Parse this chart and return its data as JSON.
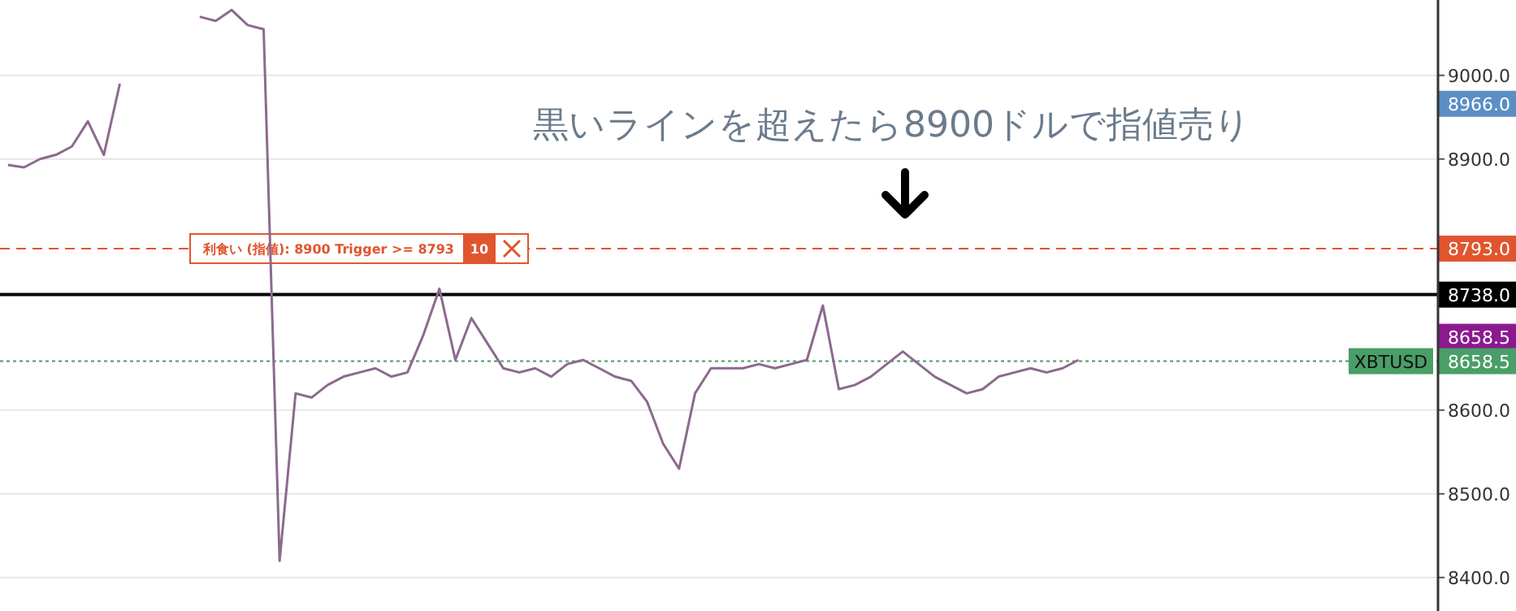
{
  "chart_data": {
    "type": "line",
    "categories": [
      null,
      null,
      null,
      null,
      null,
      null,
      null,
      null,
      null,
      null,
      null,
      null,
      null,
      null,
      null,
      null,
      null,
      null,
      null,
      null,
      null,
      null,
      null,
      null,
      null,
      null,
      null,
      null,
      null,
      null,
      null,
      null,
      null,
      null,
      null,
      null,
      null,
      null,
      null,
      null,
      null,
      null,
      null,
      null,
      null,
      null,
      null,
      null,
      null,
      null,
      null,
      null,
      null,
      null,
      null,
      null,
      null,
      null,
      null,
      null,
      null,
      null,
      null,
      null,
      null,
      null,
      null,
      null,
      null,
      null,
      null,
      null,
      null,
      null,
      null,
      null,
      null,
      null,
      null,
      null,
      null,
      null,
      null,
      null,
      null,
      null,
      null,
      null,
      null,
      null
    ],
    "series": [
      {
        "color": "#8c6a8e",
        "values": [
          8893,
          8890,
          8900,
          8905,
          8915,
          8945,
          8905,
          8990,
          null,
          null,
          null,
          null,
          null,
          null,
          null,
          null,
          null,
          null,
          null,
          null,
          null,
          null,
          null,
          null,
          null,
          null,
          null,
          null,
          null,
          null,
          null,
          null,
          null,
          null,
          null,
          null,
          null,
          null,
          null,
          null,
          null,
          null,
          null,
          null,
          null,
          null,
          null,
          null,
          null,
          null,
          null,
          null,
          null,
          null,
          null,
          null,
          null,
          null,
          null,
          null,
          null,
          null,
          null,
          null,
          null,
          null,
          null,
          null,
          null,
          null,
          null,
          null,
          null,
          null,
          null,
          null,
          null,
          null,
          null,
          null,
          null,
          null,
          null,
          null,
          null,
          null,
          null,
          null,
          null,
          null
        ]
      },
      {
        "color": "#8c6a8e",
        "values": [
          null,
          null,
          null,
          null,
          null,
          null,
          null,
          null,
          null,
          null,
          null,
          null,
          9070,
          9065,
          9078,
          9060,
          9055,
          8420,
          8620,
          8615,
          8630,
          8640,
          8645,
          8650,
          8640,
          8645,
          8690,
          8745,
          8660,
          8710,
          8680,
          8650,
          8645,
          8650,
          8640,
          8655,
          8660,
          8650,
          8640,
          8635,
          8610,
          8560,
          8530,
          8620,
          8650,
          8650,
          8650,
          8655,
          8650,
          8655,
          8660,
          8725,
          8625,
          8630,
          8640,
          8655,
          8670,
          8655,
          8640,
          8630,
          8620,
          8625,
          8640,
          8645,
          8650,
          8645,
          8650,
          8660,
          null,
          null,
          null,
          null,
          null,
          null,
          null,
          null,
          null,
          null,
          null,
          null,
          null,
          null,
          null,
          null,
          null,
          null,
          null,
          null,
          null,
          null
        ]
      }
    ],
    "ylim": [
      8360,
      9090
    ],
    "yticks": [
      {
        "value": 8400,
        "label": "8400.0"
      },
      {
        "value": 8500,
        "label": "8500.0"
      },
      {
        "value": 8600,
        "label": "8600.0"
      },
      {
        "value": 8900,
        "label": "8900.0"
      },
      {
        "value": 9000,
        "label": "9000.0"
      }
    ],
    "grid": "y",
    "ref_lines": [
      {
        "axis": "y",
        "value": 8793,
        "label": "利食い (指値): 8900 Trigger >= 8793",
        "color": "#e0552e",
        "line_style": "dashed"
      },
      {
        "axis": "y",
        "value": 8738,
        "color": "#000000",
        "line_style": "solid"
      },
      {
        "axis": "y",
        "value": 8658.5,
        "label": "XBTUSD",
        "color": "#4a9e68",
        "line_style": "dotted"
      }
    ],
    "annotations": [
      "黒いラインを超えたら8900ドルで指値売り",
      "10",
      "8966.0",
      "8793.0",
      "8738.0",
      "8658.5",
      "8658.5"
    ]
  }
}
